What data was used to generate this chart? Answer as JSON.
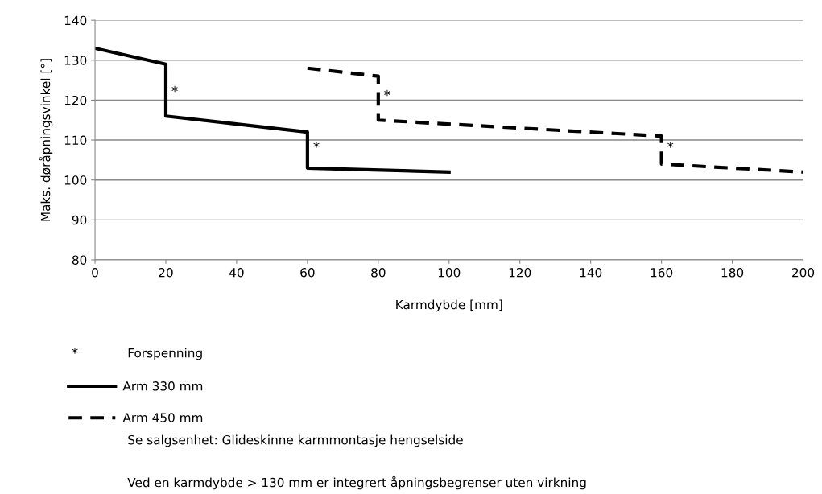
{
  "chart_data": {
    "type": "line",
    "xlabel": "Karmdybde [mm]",
    "ylabel": "Maks. døråpningsvinkel [°]",
    "series": [
      {
        "name": "Arm 330 mm",
        "color": "#000000",
        "line_style": "solid",
        "x": [
          0,
          20,
          20,
          60,
          60,
          100
        ],
        "values": [
          133,
          129,
          116,
          112,
          103,
          102
        ]
      },
      {
        "name": "Arm 450 mm",
        "color": "#000000",
        "line_style": "dashed",
        "x": [
          60,
          80,
          80,
          160,
          160,
          200
        ],
        "values": [
          128,
          126,
          115,
          111,
          104,
          102
        ]
      }
    ],
    "xlim": [
      0,
      200
    ],
    "xticks": [
      0,
      20,
      40,
      60,
      80,
      100,
      120,
      140,
      160,
      180,
      200
    ],
    "ylim": [
      80,
      140
    ],
    "yticks": [
      80,
      90,
      100,
      110,
      120,
      130,
      140
    ],
    "grid": "y",
    "legend": "bottom",
    "marker": "none",
    "annotations": [
      {
        "text": "*",
        "x": 20,
        "y": 122
      },
      {
        "text": "*",
        "x": 60,
        "y": 108
      },
      {
        "text": "*",
        "x": 80,
        "y": 121
      },
      {
        "text": "*",
        "x": 160,
        "y": 108
      },
      "*",
      "Forspenning",
      "Se salgsenhet: Glideskinne karmmontasje hengselside",
      "Ved en karmdybde > 130 mm er integrert åpningsbegrenser uten virkning"
    ]
  }
}
